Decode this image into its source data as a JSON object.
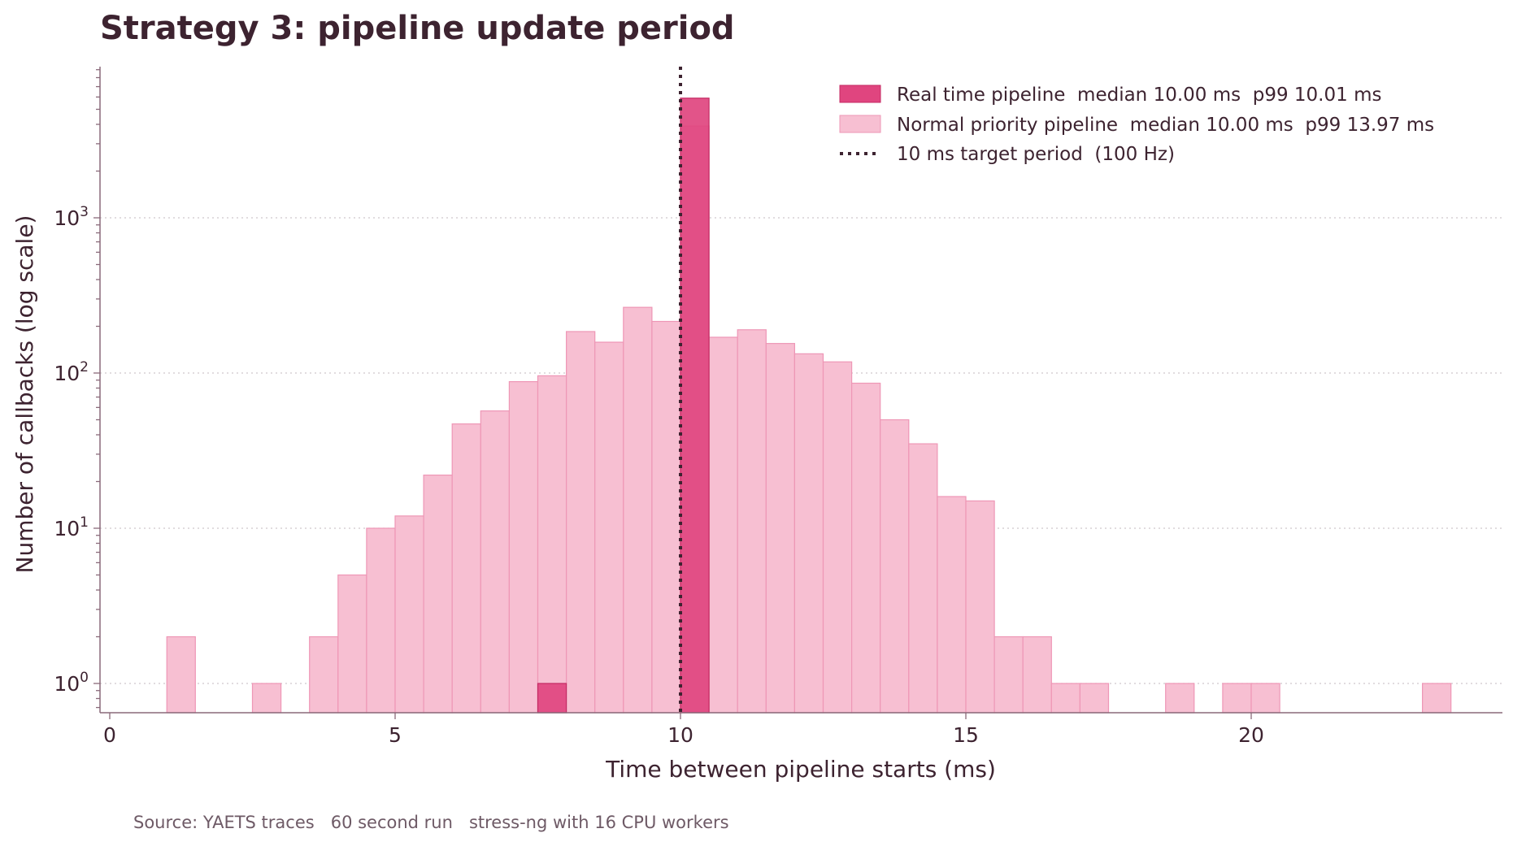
{
  "chart_data": {
    "type": "bar",
    "title": "Strategy 3: pipeline update period",
    "xlabel": "Time between pipeline starts (ms)",
    "ylabel": "Number of callbacks  (log scale)",
    "yscale": "log",
    "xlim": [
      -0.1,
      24.5
    ],
    "ylim": [
      0.65,
      9000
    ],
    "x_ticks": [
      0,
      5,
      10,
      15,
      20
    ],
    "y_ticks": [
      {
        "value": 1,
        "base": "10",
        "exp": "0"
      },
      {
        "value": 10,
        "base": "10",
        "exp": "1"
      },
      {
        "value": 100,
        "base": "10",
        "exp": "2"
      },
      {
        "value": 1000,
        "base": "10",
        "exp": "3"
      }
    ],
    "grid": "horizontal dotted",
    "legend_position": "top-right",
    "bin_width_ms": 0.5,
    "series": [
      {
        "name": "Normal priority pipeline  median 10.00 ms  p99 13.97 ms",
        "color": "#f7bfd2",
        "edge_color": "#ee97b6",
        "bins": [
          {
            "x": 1.0,
            "count": 2
          },
          {
            "x": 2.5,
            "count": 1
          },
          {
            "x": 3.5,
            "count": 2
          },
          {
            "x": 4.0,
            "count": 5
          },
          {
            "x": 4.5,
            "count": 10
          },
          {
            "x": 5.0,
            "count": 12
          },
          {
            "x": 5.5,
            "count": 22
          },
          {
            "x": 6.0,
            "count": 47
          },
          {
            "x": 6.5,
            "count": 57
          },
          {
            "x": 7.0,
            "count": 88
          },
          {
            "x": 7.5,
            "count": 96
          },
          {
            "x": 8.0,
            "count": 185
          },
          {
            "x": 8.5,
            "count": 158
          },
          {
            "x": 9.0,
            "count": 265
          },
          {
            "x": 9.5,
            "count": 215
          },
          {
            "x": 10.0,
            "count": 3900
          },
          {
            "x": 10.5,
            "count": 170
          },
          {
            "x": 11.0,
            "count": 190
          },
          {
            "x": 11.5,
            "count": 155
          },
          {
            "x": 12.0,
            "count": 133
          },
          {
            "x": 12.5,
            "count": 118
          },
          {
            "x": 13.0,
            "count": 86
          },
          {
            "x": 13.5,
            "count": 50
          },
          {
            "x": 14.0,
            "count": 35
          },
          {
            "x": 14.5,
            "count": 16
          },
          {
            "x": 15.0,
            "count": 15
          },
          {
            "x": 15.5,
            "count": 2
          },
          {
            "x": 16.0,
            "count": 2
          },
          {
            "x": 16.5,
            "count": 1
          },
          {
            "x": 17.0,
            "count": 1
          },
          {
            "x": 18.5,
            "count": 1
          },
          {
            "x": 19.5,
            "count": 1
          },
          {
            "x": 20.0,
            "count": 1
          },
          {
            "x": 23.0,
            "count": 1
          }
        ]
      },
      {
        "name": "Real time pipeline  median 10.00 ms  p99 10.01 ms",
        "color": "#e0457f",
        "edge_color": "#c42a63",
        "bins": [
          {
            "x": 7.5,
            "count": 1
          },
          {
            "x": 10.0,
            "count": 5900
          }
        ]
      }
    ],
    "reference_line": {
      "x": 10,
      "name": "10 ms target period  (100 Hz)",
      "color": "#3d2330"
    },
    "source_note": "Source: YAETS traces   60 second run   stress-ng with 16 CPU workers"
  }
}
